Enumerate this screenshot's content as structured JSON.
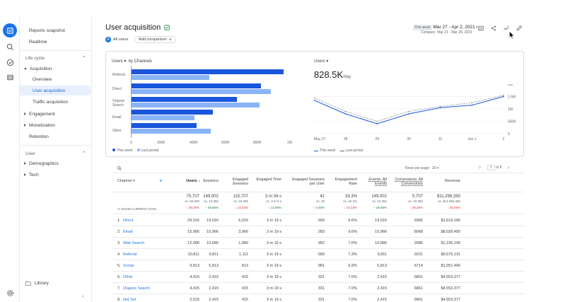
{
  "colors": {
    "accent": "#1a73e8",
    "bar_this_week": "#1a56db",
    "bar_last_period": "#8ab4f8",
    "negative": "#d93025",
    "positive": "#188038"
  },
  "sidebar": {
    "top_items": [
      {
        "label": "Reports snapshot"
      },
      {
        "label": "Realtime"
      }
    ],
    "section1": "Life cycle",
    "acquisition": "Acquisition",
    "acq_sub": [
      {
        "label": "Overview"
      },
      {
        "label": "User acquisition"
      },
      {
        "label": "Traffic acquisition"
      }
    ],
    "lifecycle_items": [
      {
        "label": "Engagement"
      },
      {
        "label": "Monetization"
      },
      {
        "label": "Retention"
      }
    ],
    "section2": "User",
    "user_items": [
      {
        "label": "Demographics"
      },
      {
        "label": "Tech"
      }
    ],
    "library": "Library"
  },
  "header": {
    "title": "User acquisition",
    "chip_all_users": "All users",
    "chip_all_users_letter": "A",
    "chip_add_comparison": "Add comparison",
    "date_badge": "This week",
    "date_range": "Mar 27 - Apr 2, 2021",
    "compare_label": "Compare",
    "compare_range": "Mar 21 - Mar 26, 2021"
  },
  "bar_chart": {
    "title": "Users",
    "subtitle": "by Channels",
    "x_ticks": [
      "0",
      "200K",
      "400K",
      "600K",
      "800K",
      "1M"
    ],
    "legend_this": "This week",
    "legend_last": "Last period",
    "categories": [
      "Referral",
      "Direct",
      "Organic Search",
      "Email",
      "Other"
    ]
  },
  "line_chart": {
    "title": "Users",
    "big_value": "828.5K",
    "big_unit": "/day",
    "y_ticks": [
      "2M",
      "1.5M",
      "1M",
      "500K",
      "0"
    ],
    "x_ticks": [
      "May 27",
      "28",
      "29",
      "30",
      "31",
      "Jun 1",
      "2"
    ],
    "legend_this": "This week",
    "legend_last": "Last period"
  },
  "chart_data": [
    {
      "type": "bar",
      "categories": [
        "Referral",
        "Direct",
        "Organic Search",
        "Email",
        "Other"
      ],
      "series": [
        {
          "name": "This week",
          "values": [
            940000,
            800000,
            650000,
            500000,
            400000
          ]
        },
        {
          "name": "Last period",
          "values": [
            480000,
            860000,
            790000,
            390000,
            490000
          ]
        }
      ],
      "xlim": [
        0,
        1000000
      ],
      "title": "Users by Channels"
    },
    {
      "type": "line",
      "x": [
        "May 27",
        "28",
        "29",
        "30",
        "31",
        "Jun 1",
        "2"
      ],
      "series": [
        {
          "name": "This week",
          "values": [
            1350000,
            800000,
            400000,
            800000,
            1050000,
            1150000,
            1500000
          ]
        },
        {
          "name": "Last period",
          "values": [
            1450000,
            900000,
            500000,
            900000,
            1100000,
            1250000,
            1550000
          ]
        }
      ],
      "ylim": [
        0,
        2000000
      ],
      "title": "Users"
    }
  ],
  "table": {
    "rows_per_page_label": "Rows per page:",
    "rows_per_page_value": "20",
    "page_current": "1",
    "page_of": "of 8",
    "headers": [
      "Channel",
      "Users",
      "Sessions",
      "Engaged Sessions",
      "Engaged Time",
      "Engaged Sessions per User",
      "Engagement Rate",
      "Events: All Events",
      "Conversions: All Conversions",
      "Revenue"
    ],
    "totals": [
      "75,707",
      "149,002",
      "115,707",
      "3 m 34 s",
      "42",
      "33.3%",
      "149,002",
      "5,707",
      "$11,298,390"
    ],
    "totals_vs": [
      "vs. 66,930",
      "vs. 10,392",
      "vs. 10,392",
      "vs. 3 m 9 s",
      "vs. 20",
      "vs. 42.2%",
      "vs. 10,392",
      "vs. 10,392",
      "vs. $11,382,492"
    ],
    "totals_delta": [
      "28.25%",
      "28.56%",
      "14.23%",
      "13.89%",
      "2.45%",
      "14.23%",
      "28.56%",
      "28.25%",
      "28.25%"
    ],
    "show_current_date": "SHOW CURRENT DATE...",
    "rows": [
      {
        "num": "1.",
        "channel": "Direct",
        "cells": [
          "29,016",
          "19,016",
          "6,016",
          "3 m 19 s",
          "659",
          "6.6%",
          "19,016",
          "9366",
          "$1,619,166"
        ]
      },
      {
        "num": "2.",
        "channel": "Email",
        "cells": [
          "15,966",
          "15,966",
          "3,966",
          "3 m 19 s",
          "283",
          "9.6%",
          "15,966",
          "8068",
          "$8,028,400"
        ]
      },
      {
        "num": "3.",
        "channel": "Web Search",
        "cells": [
          "12,680",
          "10,680",
          "1,680",
          "3 m 19 s",
          "952",
          "7.0%",
          "10,680",
          "2686",
          "$1,195,106"
        ]
      },
      {
        "num": "4.",
        "channel": "Referral",
        "cells": [
          "10,811",
          "9,811",
          "1,111",
          "3 m 19 s",
          "669",
          "7.3%",
          "9,811",
          "9231",
          "$9,575,131"
        ]
      },
      {
        "num": "5.",
        "channel": "Social",
        "cells": [
          "9,813",
          "5,813",
          "813",
          "3 m 19 s",
          "981",
          "6.9%",
          "5,813",
          "6714",
          "$1,051,440"
        ]
      },
      {
        "num": "6.",
        "channel": "Other",
        "cells": [
          "4,415",
          "2,415",
          "415",
          "3 m 19 s",
          "331",
          "7.0%",
          "2,415",
          "6861",
          "$4,553,377"
        ]
      },
      {
        "num": "7.",
        "channel": "Organic Search",
        "cells": [
          "4,415",
          "2,415",
          "415",
          "3 m 19 s",
          "331",
          "7.0%",
          "2,415",
          "6861",
          "$4,553,377"
        ]
      },
      {
        "num": "8.",
        "channel": "Not Set",
        "cells": [
          "2,515",
          "2,415",
          "415",
          "3 m 19 s",
          "331",
          "7.0%",
          "2,415",
          "6861",
          "$4,553,377"
        ]
      }
    ]
  }
}
